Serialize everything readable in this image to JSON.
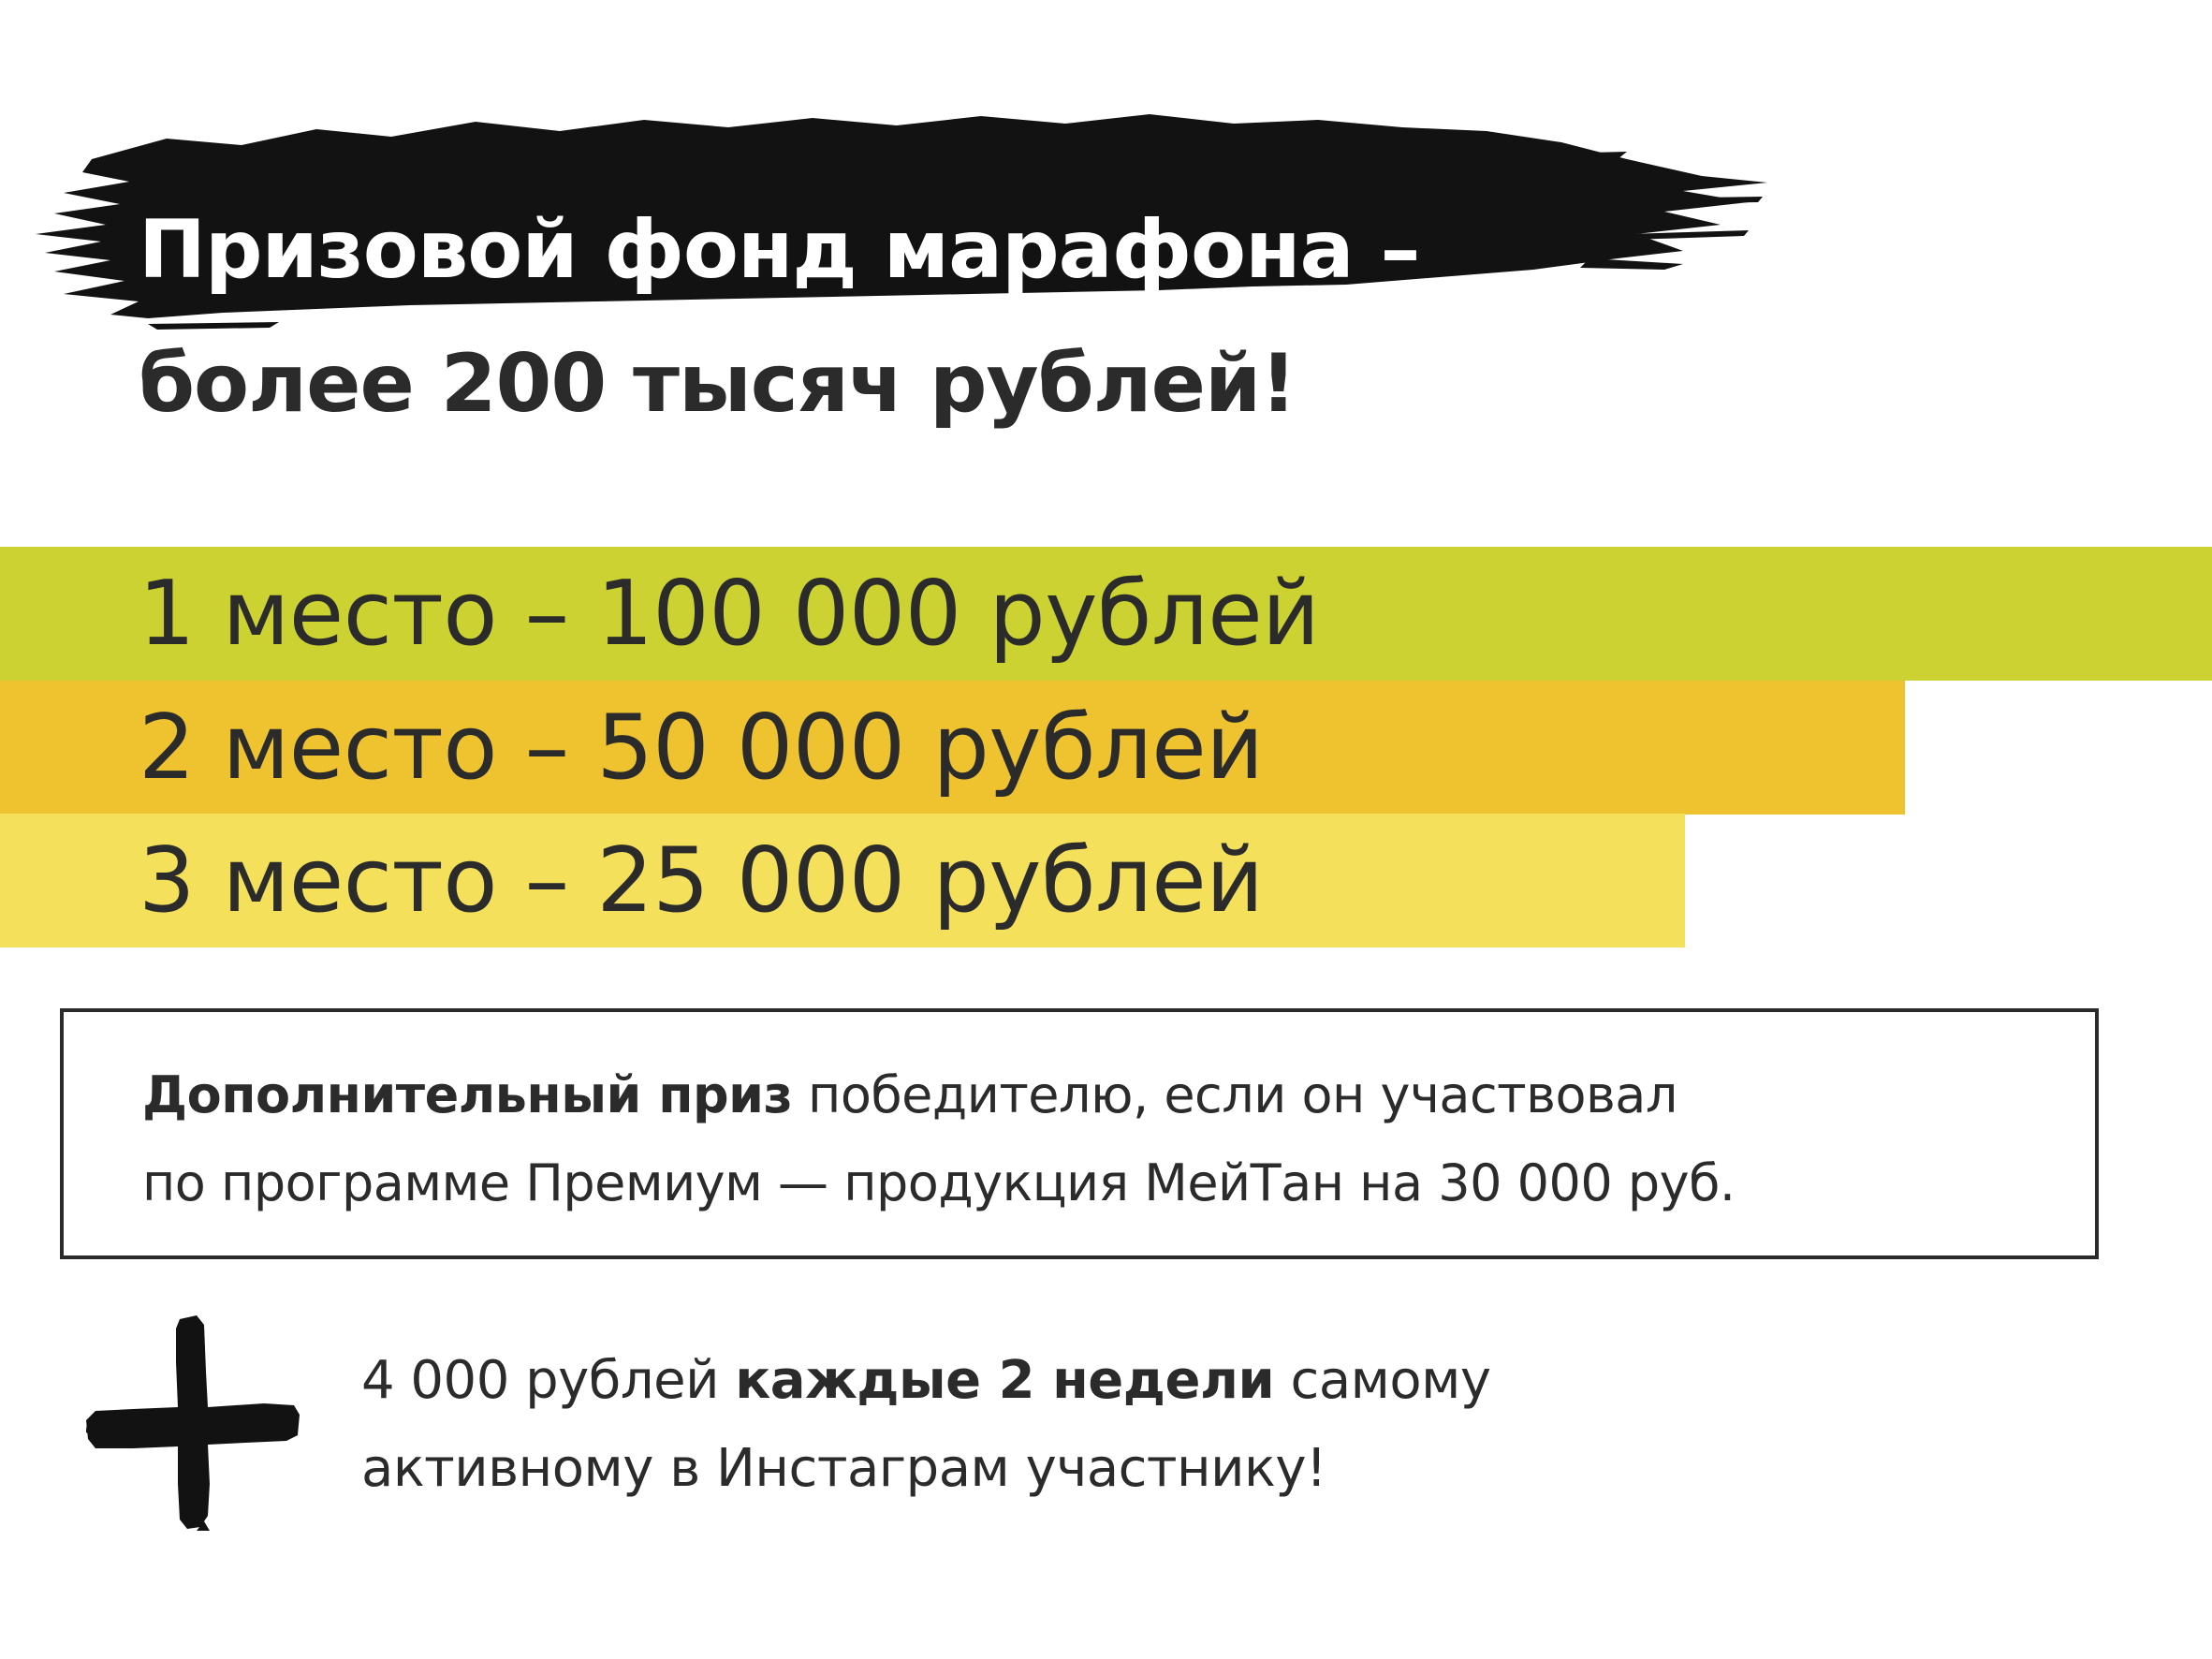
{
  "headline": {
    "line1": "Призовой фонд марафона –",
    "line2": "более 200 тысяч рублей!"
  },
  "prizes": [
    {
      "label": "1 место – 100 000 рублей",
      "color": "#cbd232"
    },
    {
      "label": "2 место – 50 000 рублей",
      "color": "#efc230"
    },
    {
      "label": "3 место – 25 000 рублей",
      "color": "#f4e05a"
    }
  ],
  "bonus": {
    "bold": "Дополнительный приз",
    "rest_line1": " победителю, если он участвовал",
    "line2": "по программе Премиум — продукция МейТан на 30 000 руб."
  },
  "instagram": {
    "prefix": "4 000 рублей ",
    "bold": "каждые 2 недели",
    "suffix_line1": " самому",
    "line2": "активному в Инстаграм участнику!"
  },
  "icons": {
    "brush": "brush-stroke-icon",
    "plus": "plus-icon"
  }
}
